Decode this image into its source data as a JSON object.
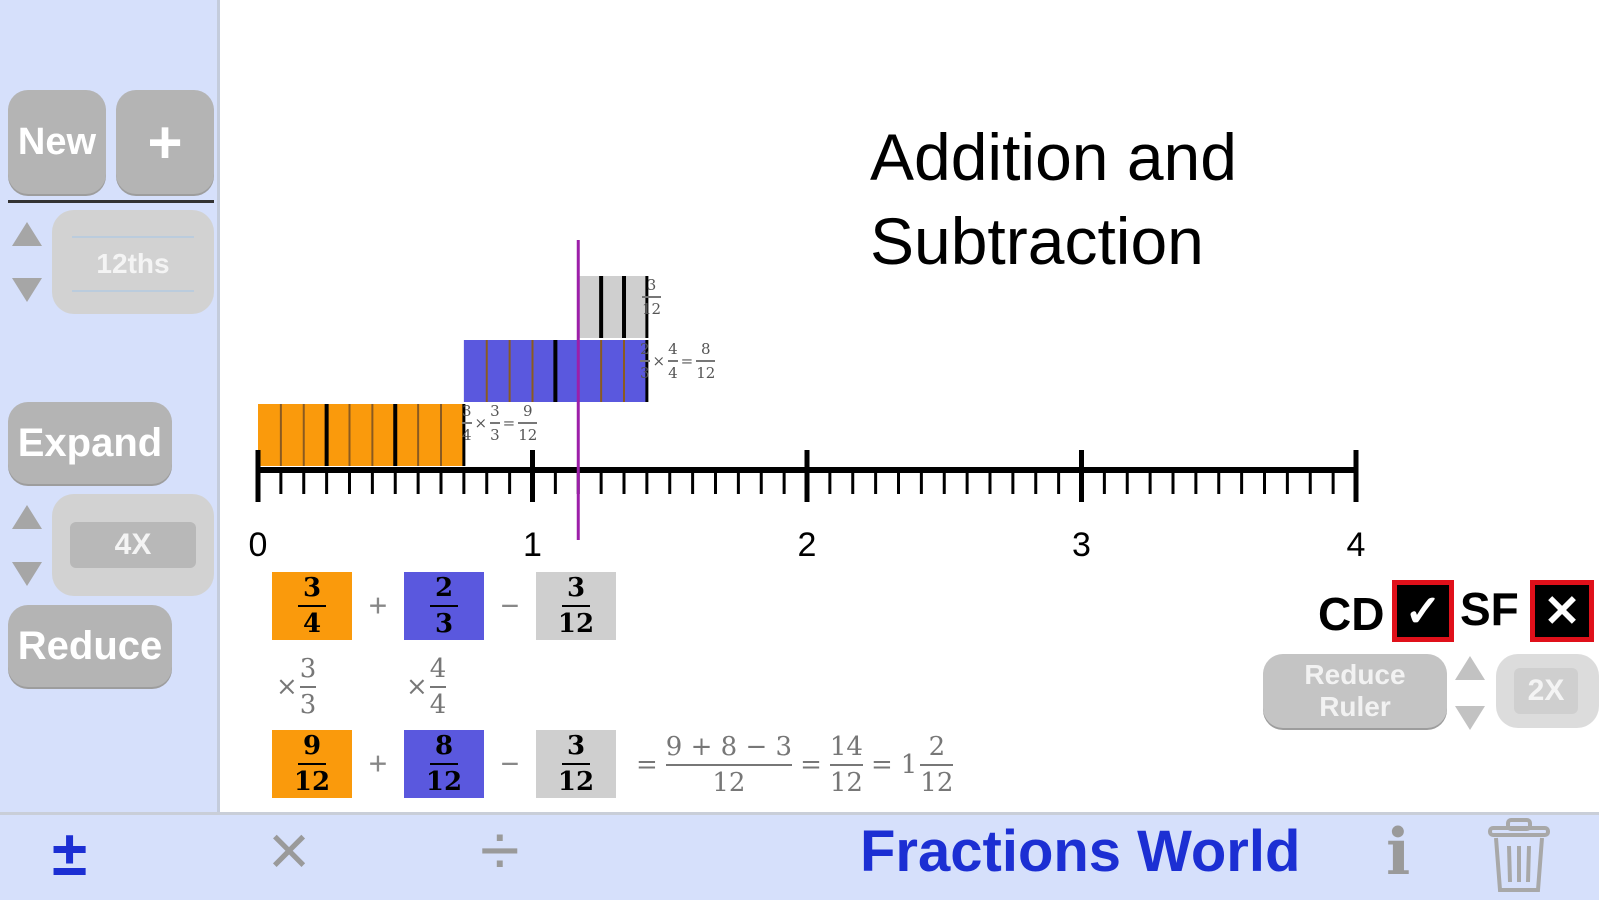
{
  "sidebar": {
    "new_label": "New",
    "plus_label": "+",
    "denominator_value": "12ths",
    "expand_label": "Expand",
    "expand_value": "4X",
    "reduce_label": "Reduce"
  },
  "title": {
    "line1": "Addition and",
    "line2": "Subtraction"
  },
  "number_line": {
    "min": 0,
    "max": 4,
    "major_labels": [
      "0",
      "1",
      "2",
      "3",
      "4"
    ],
    "subdivisions_per_unit": 12,
    "marker_value": 1.1667
  },
  "bars": [
    {
      "name": "addend-1",
      "start": 0,
      "end": 0.75,
      "color": "#fa9a0c",
      "parts": 9,
      "group": 3,
      "label": {
        "a_num": "3",
        "a_den": "4",
        "m_num": "3",
        "m_den": "3",
        "r_num": "9",
        "r_den": "12"
      }
    },
    {
      "name": "addend-2",
      "start": 0.75,
      "end": 1.4167,
      "color": "#5a58de",
      "parts": 8,
      "group": 4,
      "label": {
        "a_num": "2",
        "a_den": "3",
        "m_num": "4",
        "m_den": "4",
        "r_num": "8",
        "r_den": "12"
      }
    },
    {
      "name": "subtrahend",
      "start": 1.1667,
      "end": 1.4167,
      "color": "#cfcfcf",
      "parts": 3,
      "group": 1,
      "label": {
        "num": "3",
        "den": "12"
      }
    }
  ],
  "equation": {
    "row1": [
      {
        "num": "3",
        "den": "4"
      },
      {
        "num": "2",
        "den": "3"
      },
      {
        "num": "3",
        "den": "12"
      }
    ],
    "ops": [
      "+",
      "−"
    ],
    "multipliers": [
      {
        "sym": "×",
        "num": "3",
        "den": "3"
      },
      {
        "sym": "×",
        "num": "4",
        "den": "4"
      }
    ],
    "row2": [
      {
        "num": "9",
        "den": "12"
      },
      {
        "num": "8",
        "den": "12"
      },
      {
        "num": "3",
        "den": "12"
      }
    ],
    "result": {
      "eq": "=",
      "expr_num": "9 + 8 − 3",
      "expr_den": "12",
      "sum_num": "14",
      "sum_den": "12",
      "whole": "1",
      "mixed_num": "2",
      "mixed_den": "12"
    }
  },
  "options": {
    "cd_label": "CD",
    "cd_mark": "✓",
    "sf_label": "SF",
    "sf_mark": "✕",
    "reduce_ruler_line1": "Reduce",
    "reduce_ruler_line2": "Ruler",
    "ruler_value": "2X"
  },
  "toolbar": {
    "plus_minus": "±",
    "times": "×",
    "divide": "÷",
    "app_name": "Fractions World",
    "info": "i"
  },
  "colors": {
    "accent": "#1c2fd3",
    "orange": "#fa9a0c",
    "blue": "#5a58de",
    "marker": "#9c1fa9"
  }
}
